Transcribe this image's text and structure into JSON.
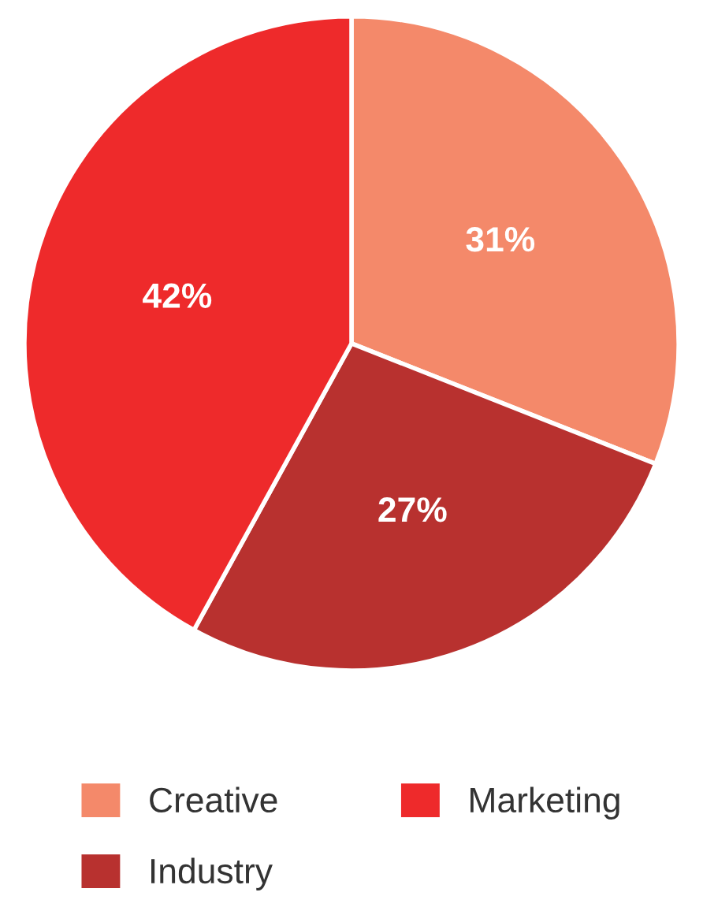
{
  "chart_data": {
    "type": "pie",
    "categories": [
      "Creative",
      "Industry",
      "Marketing"
    ],
    "values": [
      31,
      27,
      42
    ],
    "value_labels": [
      "31%",
      "27%",
      "42%"
    ],
    "colors": [
      "#f4896a",
      "#b8312f",
      "#ee2a2b"
    ],
    "legend": "bottom"
  }
}
